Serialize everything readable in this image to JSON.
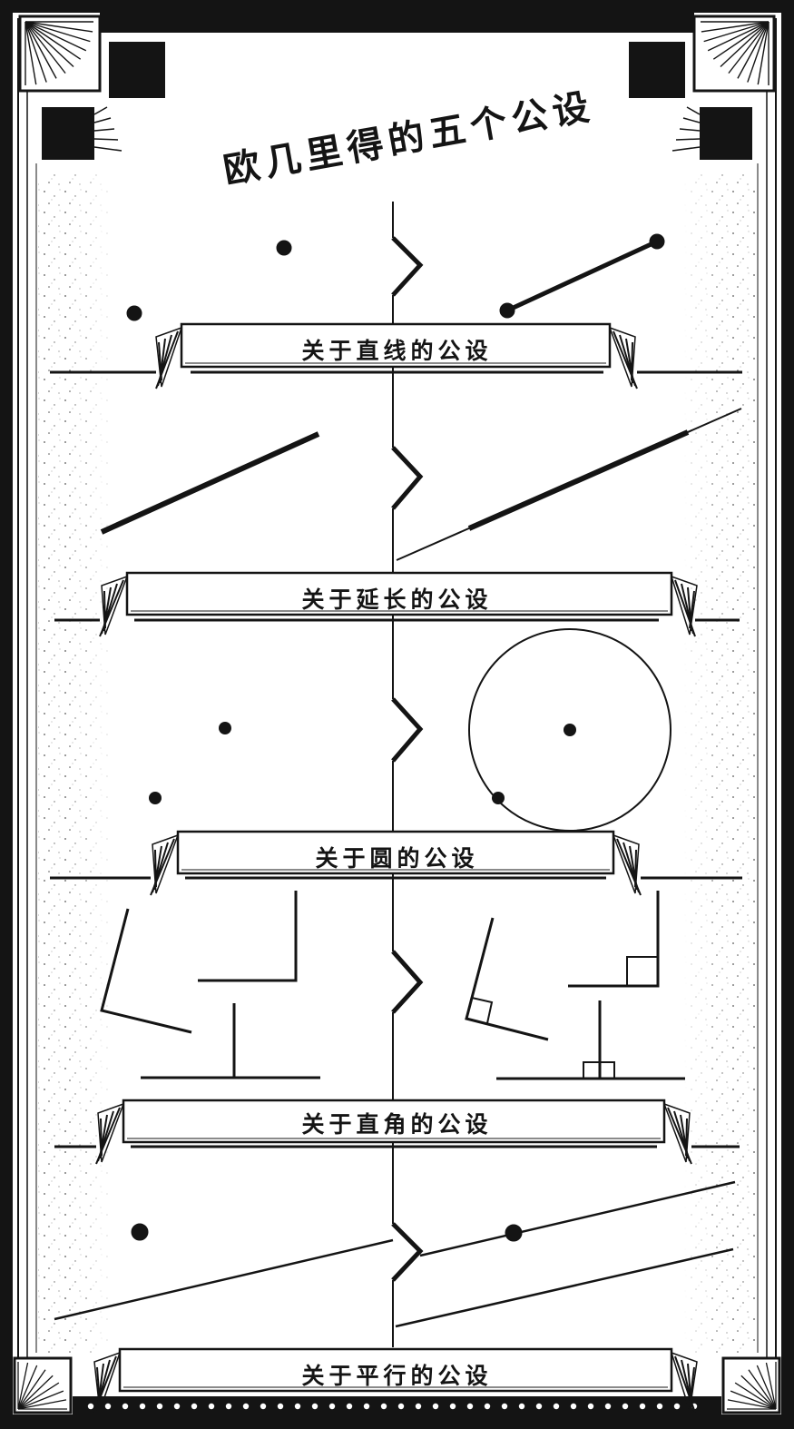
{
  "title": "欧几里得的五个公设",
  "postulates": [
    {
      "label": "关于直线的公设"
    },
    {
      "label": "关于延长的公设"
    },
    {
      "label": "关于圆的公设"
    },
    {
      "label": "关于直角的公设"
    },
    {
      "label": "关于平行的公设"
    }
  ],
  "colors": {
    "ink": "#141414",
    "paper": "#ffffff"
  }
}
